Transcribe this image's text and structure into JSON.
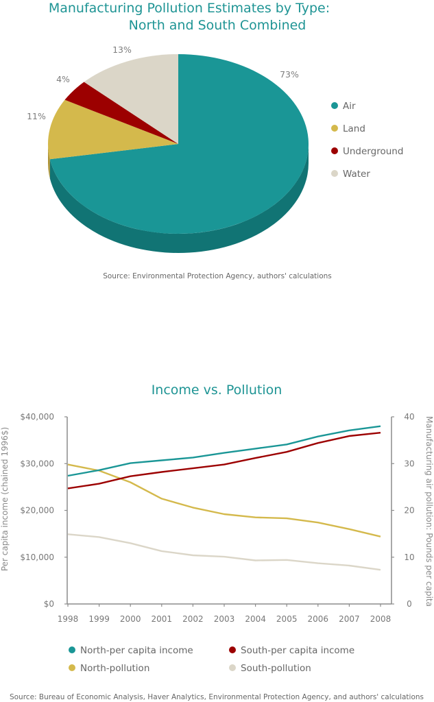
{
  "colors": {
    "teal": "#1a9696",
    "teal_dark": "#117474",
    "gold": "#d4b94c",
    "gold_dark": "#b09436",
    "red": "#9c0000",
    "red_dark": "#6c0000",
    "beige": "#dbd6c8",
    "beige_dark": "#b9b3a3",
    "axis": "#8c8c8c"
  },
  "chart_data": [
    {
      "type": "pie",
      "title_line1": "Manufacturing Pollution Estimates by Type:",
      "title_line2": "North and South Combined",
      "slices": [
        {
          "label": "Air",
          "value": 73,
          "value_label": "73%",
          "color": "#1a9696",
          "dark": "#117474"
        },
        {
          "label": "Land",
          "value": 11,
          "value_label": "11%",
          "color": "#d4b94c",
          "dark": "#b09436"
        },
        {
          "label": "Underground",
          "value": 4,
          "value_label": "4%",
          "color": "#9c0000",
          "dark": "#6c0000"
        },
        {
          "label": "Water",
          "value": 13,
          "value_label": "13%",
          "color": "#dbd6c8",
          "dark": "#b9b3a3"
        }
      ],
      "legend": [
        "Air",
        "Land",
        "Underground",
        "Water"
      ],
      "legend_position": "right",
      "three_d": true,
      "source": "Source: Environmental Protection Agency, authors' calculations"
    },
    {
      "type": "line",
      "title": "Income vs. Pollution",
      "x": [
        1998,
        1999,
        2000,
        2001,
        2002,
        2003,
        2004,
        2005,
        2006,
        2007,
        2008
      ],
      "x_tick_labels": [
        "1998",
        "1999",
        "2000",
        "2001",
        "2002",
        "2003",
        "2004",
        "2005",
        "2006",
        "2007",
        "2008"
      ],
      "ylabel_left": "Per capita income (chained 1996$)",
      "ylabel_right": "Manufacturing air pollution: Pounds per capita",
      "ylim_left": [
        0,
        40000
      ],
      "ylim_right": [
        0,
        40
      ],
      "y_ticks_left": [
        {
          "value": 0,
          "label": "$0"
        },
        {
          "value": 10000,
          "label": "$10,000"
        },
        {
          "value": 20000,
          "label": "$20,000"
        },
        {
          "value": 30000,
          "label": "$30,000"
        },
        {
          "value": 40000,
          "label": "$40,000"
        }
      ],
      "y_ticks_right": [
        {
          "value": 0,
          "label": "0"
        },
        {
          "value": 10,
          "label": "10"
        },
        {
          "value": 20,
          "label": "20"
        },
        {
          "value": 30,
          "label": "30"
        },
        {
          "value": 40,
          "label": "40"
        }
      ],
      "grid": false,
      "legend_position": "bottom",
      "series": [
        {
          "name": "North-per capita income",
          "axis": "left",
          "color": "#1a9696",
          "values": [
            27400,
            28600,
            30100,
            30700,
            31300,
            32300,
            33200,
            34100,
            35800,
            37100,
            38000
          ]
        },
        {
          "name": "South-per capita income",
          "axis": "left",
          "color": "#9c0000",
          "values": [
            24700,
            25700,
            27300,
            28200,
            29000,
            29800,
            31200,
            32500,
            34400,
            35900,
            36600
          ]
        },
        {
          "name": "North-pollution",
          "axis": "right",
          "color": "#d4b94c",
          "values": [
            29.8,
            28.5,
            26.0,
            22.5,
            20.6,
            19.2,
            18.5,
            18.3,
            17.4,
            16.0,
            14.4
          ]
        },
        {
          "name": "South-pollution",
          "axis": "right",
          "color": "#dbd6c8",
          "values": [
            14.9,
            14.3,
            13.0,
            11.3,
            10.4,
            10.1,
            9.3,
            9.4,
            8.7,
            8.2,
            7.3
          ]
        }
      ],
      "source": "Source: Bureau of Economic Analysis, Haver Analytics, Environmental Protection Agency, and authors' calculations"
    }
  ]
}
